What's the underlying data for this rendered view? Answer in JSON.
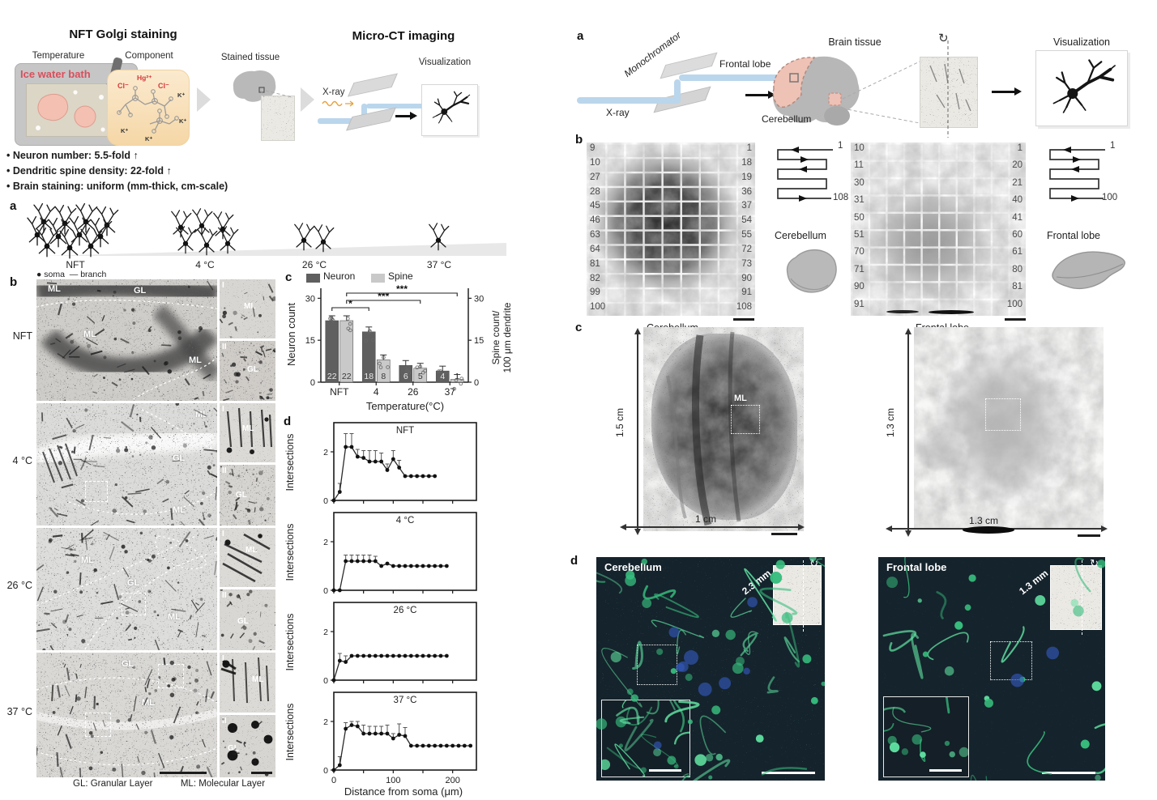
{
  "figure": {
    "left": {
      "header": {
        "golgi_title": "NFT Golgi staining",
        "microct_title": "Micro-CT imaging",
        "temperature_label": "Temperature",
        "component_label": "Component",
        "stained_tissue_label": "Stained tissue",
        "visualization_label": "Visualization",
        "ice_bath_text": "Ice water bath",
        "xray_label": "X-ray",
        "chem": {
          "hg": "Hg²⁺",
          "cl1": "Cl⁻",
          "cl2": "Cl⁻",
          "k1": "K⁺",
          "k2": "K⁺",
          "k3": "K⁺",
          "k4": "K⁺"
        },
        "bullets": [
          "Neuron number: 5.5-fold ↑",
          "Dendritic spine density: 22-fold ↑",
          "Brain staining: uniform (mm-thick, cm-scale)"
        ]
      },
      "panel_a": {
        "temps": [
          "NFT",
          "4 °C",
          "26 °C",
          "37 °C"
        ],
        "legend_soma": "soma",
        "legend_branch": "branch",
        "dot": "●",
        "dash": "—"
      },
      "panel_b": {
        "row_labels": [
          "NFT",
          "4 °C",
          "26 °C",
          "37 °C"
        ],
        "region_ml": "ML",
        "region_gl": "GL",
        "inset_numerals": [
          "I",
          "II"
        ],
        "footer_gl": "GL: Granular Layer",
        "footer_ml": "ML: Molecular Layer"
      },
      "panel_c_titles": {
        "legend_neuron": "Neuron",
        "legend_spine": "Spine",
        "ylabel_left": "Neuron count",
        "ylabel_right1": "Spine count/",
        "ylabel_right2": "100 μm dendrite",
        "xlabel": "Temperature(°C)"
      },
      "panel_d_titles": {
        "ylabel": "Intersections",
        "xlabel": "Distance from soma (μm)"
      }
    },
    "right": {
      "panel_a": {
        "monochromator": "Monochromator",
        "xray": "X-ray",
        "brain_tissue": "Brain tissue",
        "frontal_lobe": "Frontal lobe",
        "cerebellum": "Cerebellum",
        "visualization": "Visualization"
      },
      "panel_b": {
        "cerebellum": {
          "name": "Cerebellum",
          "left_labels": [
            9,
            10,
            27,
            28,
            45,
            46,
            63,
            64,
            81,
            82,
            99,
            100
          ],
          "right_labels": [
            1,
            18,
            19,
            36,
            37,
            54,
            55,
            72,
            73,
            90,
            91,
            108
          ],
          "cols": 9,
          "rows": 12,
          "serp_start": "1",
          "serp_end": "108"
        },
        "frontal": {
          "name": "Frontal lobe",
          "left_labels": [
            10,
            11,
            30,
            31,
            50,
            51,
            70,
            71,
            90,
            91
          ],
          "right_labels": [
            1,
            20,
            21,
            40,
            41,
            60,
            61,
            80,
            81,
            100
          ],
          "cols": 10,
          "rows": 10,
          "serp_start": "1",
          "serp_end": "100"
        }
      },
      "panel_c": {
        "cerebellum": {
          "name": "Cerebellum",
          "height": "1.5 cm",
          "width": "1 cm",
          "roi": "ML"
        },
        "frontal": {
          "name": "Frontal lobe",
          "height": "1.3 cm",
          "width": "1.3 cm"
        }
      },
      "panel_d": {
        "cerebellum": {
          "name": "Cerebellum",
          "depth": "2.3 mm"
        },
        "frontal": {
          "name": "Frontal lobe",
          "depth": "1.3 mm"
        }
      }
    },
    "colors": {
      "neuron_bar": "#5f5f5f",
      "spine_bar": "#c9c9c9",
      "ice_bath_red": "#d94f5c",
      "chem_red": "#d43a3a",
      "xray_orange": "#e8a13c",
      "beam_blue": "#bad6ec",
      "fluor_bg": "#15232c",
      "fluor_green": "#37bd7d",
      "fluor_blue": "#3358b8",
      "tissue_pink": "#f3c3b6"
    }
  },
  "chart_data": [
    {
      "type": "bar",
      "categories": [
        "NFT",
        "4",
        "26",
        "37"
      ],
      "series": [
        {
          "name": "Neuron",
          "values": [
            22,
            18,
            6,
            4
          ],
          "color": "#5f5f5f"
        },
        {
          "name": "Spine",
          "values": [
            22,
            8,
            5,
            1
          ],
          "color": "#c9c9c9"
        }
      ],
      "bar_value_labels": [
        [
          22,
          18,
          6,
          4
        ],
        [
          22,
          8,
          5,
          1
        ]
      ],
      "ylabel_left": "Neuron count",
      "ylabel_right": "Spine count/ 100 μm dendrite",
      "xlabel": "Temperature(°C)",
      "ylim": [
        0,
        33
      ],
      "yticks": [
        0,
        15,
        30
      ],
      "legend_position": "top",
      "significance": [
        {
          "from": 0,
          "to": 1,
          "side": "neuron",
          "label": "*"
        },
        {
          "from": 0,
          "to": 2,
          "side": "spine",
          "label": "***"
        },
        {
          "from": 0,
          "to": 3,
          "side": "spine",
          "label": "***"
        }
      ]
    },
    {
      "type": "line",
      "title": "NFT",
      "ylabel": "Intersections",
      "xlim": [
        0,
        240
      ],
      "ylim": [
        0,
        3
      ],
      "x_step": 10,
      "yticks": [
        0,
        2
      ],
      "xticks": [
        0,
        50,
        100,
        150,
        200
      ],
      "values": [
        0,
        0.35,
        2.2,
        2.2,
        1.8,
        1.75,
        1.6,
        1.6,
        1.6,
        1.25,
        1.7,
        1.35,
        1,
        1,
        1,
        1,
        1,
        1
      ],
      "errors": [
        0,
        0.35,
        0.55,
        0.55,
        0.3,
        0.3,
        0.45,
        0.45,
        0.35,
        0.25,
        0.35,
        0.3,
        0,
        0,
        0,
        0,
        0,
        0
      ]
    },
    {
      "type": "line",
      "title": "4 °C",
      "ylabel": "Intersections",
      "xlim": [
        0,
        240
      ],
      "ylim": [
        0,
        3
      ],
      "x_step": 10,
      "yticks": [
        0,
        2
      ],
      "xticks": [
        0,
        50,
        100,
        150,
        200
      ],
      "values": [
        0,
        0,
        1.2,
        1.2,
        1.2,
        1.2,
        1.2,
        1.2,
        1,
        1.1,
        1,
        1,
        1,
        1,
        1,
        1,
        1,
        1,
        1,
        1
      ],
      "errors": [
        0,
        0,
        0.25,
        0.25,
        0.25,
        0.25,
        0.25,
        0.2,
        0,
        0,
        0,
        0,
        0,
        0,
        0,
        0,
        0,
        0,
        0,
        0
      ]
    },
    {
      "type": "line",
      "title": "26 °C",
      "ylabel": "Intersections",
      "xlim": [
        0,
        240
      ],
      "ylim": [
        0,
        3
      ],
      "x_step": 10,
      "yticks": [
        0,
        2
      ],
      "xticks": [
        0,
        50,
        100,
        150,
        200
      ],
      "values": [
        0,
        0.8,
        0.75,
        1,
        1,
        1,
        1,
        1,
        1,
        1,
        1,
        1,
        1,
        1,
        1,
        1,
        1,
        1,
        1,
        1
      ],
      "errors": [
        0,
        0.3,
        0.25,
        0,
        0,
        0,
        0,
        0,
        0,
        0,
        0,
        0,
        0,
        0,
        0,
        0,
        0,
        0,
        0,
        0
      ]
    },
    {
      "type": "line",
      "title": "37 °C",
      "ylabel": "Intersections",
      "xlabel": "Distance from soma (μm)",
      "xlim": [
        0,
        240
      ],
      "ylim": [
        0,
        3
      ],
      "x_step": 10,
      "yticks": [
        0,
        2
      ],
      "xticks": [
        0,
        50,
        100,
        150,
        200
      ],
      "xtick_labels": [
        0,
        100,
        200
      ],
      "values": [
        0,
        0.2,
        1.7,
        1.85,
        1.8,
        1.5,
        1.5,
        1.5,
        1.5,
        1.5,
        1.3,
        1.45,
        1.4,
        1,
        1,
        1,
        1,
        1,
        1,
        1,
        1,
        1,
        1,
        1
      ],
      "errors": [
        0,
        0.35,
        0.25,
        0.15,
        0.2,
        0.35,
        0.3,
        0.3,
        0.3,
        0.35,
        0.2,
        0.45,
        0.35,
        0,
        0,
        0,
        0,
        0,
        0,
        0,
        0,
        0,
        0,
        0
      ]
    }
  ]
}
